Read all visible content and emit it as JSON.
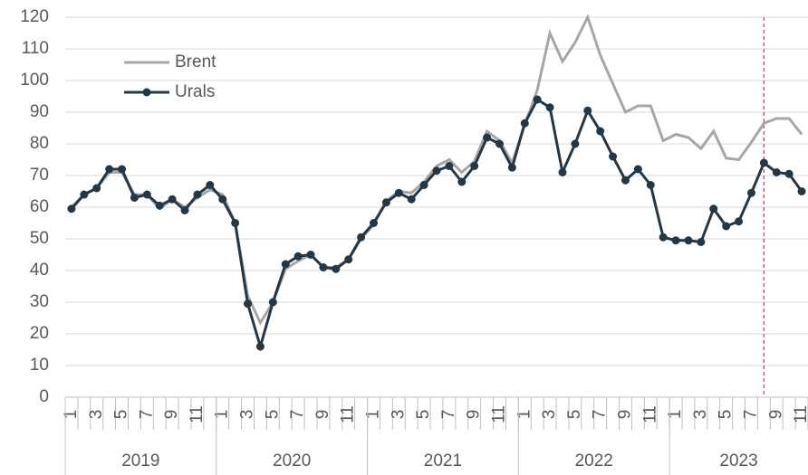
{
  "chart_data": {
    "type": "line",
    "categories": [
      "1",
      null,
      "3",
      null,
      "5",
      null,
      "7",
      null,
      "9",
      null,
      "11",
      null,
      "1",
      null,
      "3",
      null,
      "5",
      null,
      "7",
      null,
      "9",
      null,
      "11",
      null,
      "1",
      null,
      "3",
      null,
      "5",
      null,
      "7",
      null,
      "9",
      null,
      "11",
      null,
      "1",
      null,
      "3",
      null,
      "5",
      null,
      "7",
      null,
      "9",
      null,
      "11",
      null,
      "1",
      null,
      "3",
      null,
      "5",
      null,
      "7",
      null,
      "9",
      null,
      "11"
    ],
    "years": [
      "2019",
      "2020",
      "2021",
      "2022",
      "2023"
    ],
    "series": [
      {
        "name": "Brent",
        "color": "#a6a6a6",
        "markers": false,
        "values": [
          60,
          64,
          66,
          71,
          71,
          64,
          64,
          59.5,
          62.5,
          60,
          63,
          65.5,
          64,
          55,
          32,
          23.5,
          30,
          40.5,
          43,
          45,
          41,
          41,
          43.5,
          50,
          54.5,
          62,
          65,
          64.5,
          68,
          73,
          75,
          71,
          74.5,
          84,
          81,
          74,
          86,
          97,
          115,
          106,
          112,
          120,
          108,
          99,
          90,
          92,
          92,
          81,
          83,
          82,
          78.5,
          84,
          75.5,
          75,
          80.5,
          86.5,
          88,
          88,
          83
        ]
      },
      {
        "name": "Urals",
        "color": "#243746",
        "markers": true,
        "values": [
          59.5,
          64,
          66,
          72,
          72,
          63,
          64,
          60.5,
          62.5,
          59,
          64,
          67,
          62.5,
          55,
          29.5,
          16,
          30,
          42,
          44.5,
          45,
          41,
          40.5,
          43.5,
          50.5,
          55,
          61.5,
          64.5,
          62.5,
          67,
          71.5,
          73,
          68,
          73,
          82,
          80,
          72.5,
          86.5,
          94,
          91.5,
          71,
          80,
          90.5,
          84,
          76,
          68.5,
          72,
          67,
          50.5,
          49.5,
          49.5,
          49,
          59.5,
          54,
          55.5,
          64.5,
          74,
          71,
          70.5,
          65
        ]
      }
    ],
    "vline_category": 55,
    "vline_color": "#c0504d",
    "ylim": [
      0,
      120
    ],
    "yticks": [
      0,
      10,
      20,
      30,
      40,
      50,
      60,
      70,
      80,
      90,
      100,
      110,
      120
    ],
    "grid": true,
    "legend": "upper left"
  }
}
